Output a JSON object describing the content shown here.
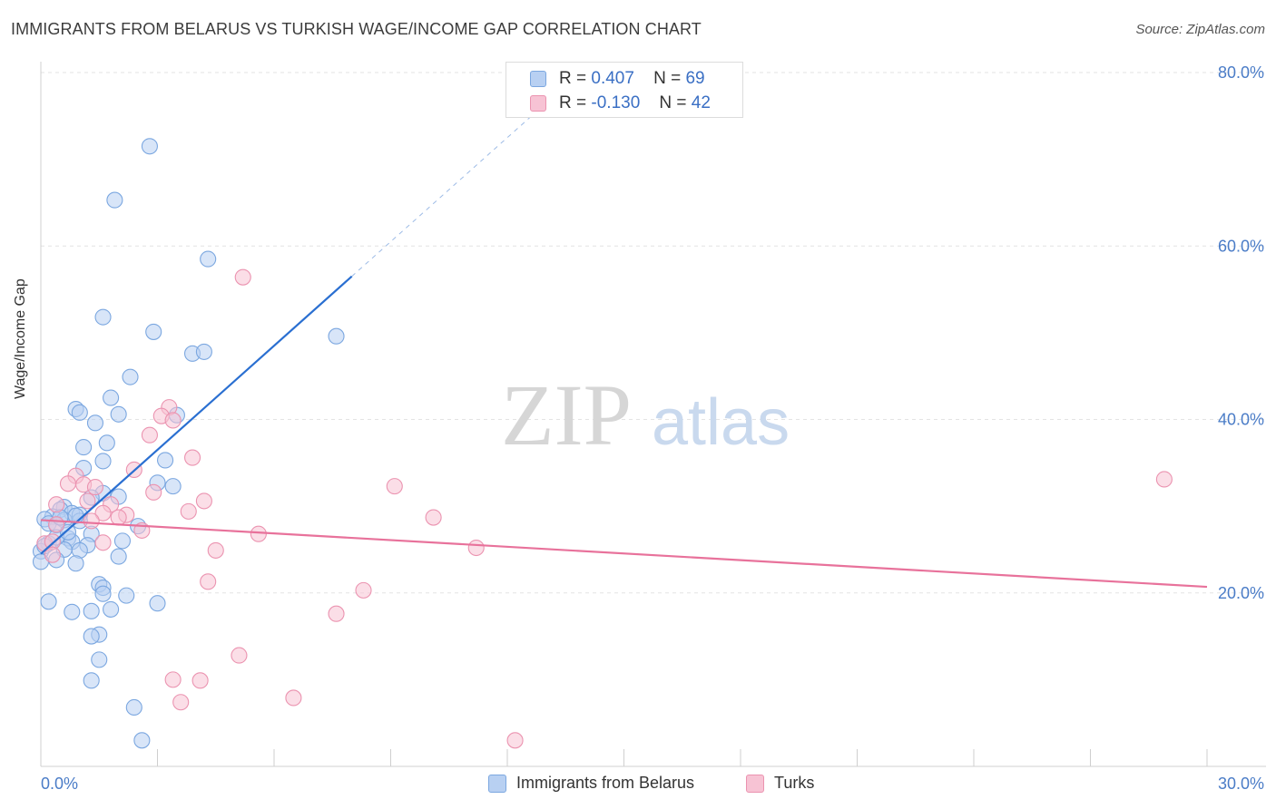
{
  "title": "IMMIGRANTS FROM BELARUS VS TURKISH WAGE/INCOME GAP CORRELATION CHART",
  "source": "Source: ZipAtlas.com",
  "watermark": {
    "zip": "ZIP",
    "atlas": "atlas"
  },
  "stats": [
    {
      "r_label": "R =",
      "r_value": "0.407",
      "n_label": "N =",
      "n_value": "69"
    },
    {
      "r_label": "R =",
      "r_value": "-0.130",
      "n_label": "N =",
      "n_value": "42"
    }
  ],
  "chart_data": {
    "type": "scatter",
    "title": "IMMIGRANTS FROM BELARUS VS TURKISH WAGE/INCOME GAP CORRELATION CHART",
    "xlabel": "",
    "ylabel": "Wage/Income Gap",
    "xlim": [
      0,
      30
    ],
    "ylim": [
      0,
      82
    ],
    "x_ticks": [
      0,
      30
    ],
    "x_tick_labels": [
      "0.0%",
      "30.0%"
    ],
    "y_ticks": [
      20,
      40,
      60,
      80
    ],
    "y_tick_labels": [
      "20.0%",
      "40.0%",
      "60.0%",
      "80.0%"
    ],
    "grid": true,
    "legend_position": "bottom-center",
    "series": [
      {
        "name": "Immigrants from Belarus",
        "color": "#7ba7e0",
        "fill": "#b8d0f2",
        "line_color": "#2a6fd1",
        "trend": {
          "x": [
            0.0,
            8.0
          ],
          "y": [
            24.5,
            56.5
          ],
          "dashed_to": [
            13.0,
            76.5
          ]
        },
        "points": [
          [
            2.8,
            71.5
          ],
          [
            1.9,
            65.3
          ],
          [
            4.3,
            58.5
          ],
          [
            1.6,
            51.8
          ],
          [
            2.9,
            50.1
          ],
          [
            7.6,
            49.6
          ],
          [
            3.9,
            47.6
          ],
          [
            4.2,
            47.8
          ],
          [
            2.3,
            44.9
          ],
          [
            1.8,
            42.5
          ],
          [
            0.9,
            41.2
          ],
          [
            1.0,
            40.8
          ],
          [
            2.0,
            40.6
          ],
          [
            3.5,
            40.5
          ],
          [
            1.4,
            39.6
          ],
          [
            1.7,
            37.3
          ],
          [
            1.1,
            36.8
          ],
          [
            1.6,
            35.2
          ],
          [
            3.2,
            35.3
          ],
          [
            1.1,
            34.4
          ],
          [
            3.0,
            32.7
          ],
          [
            3.4,
            32.3
          ],
          [
            1.6,
            31.5
          ],
          [
            2.0,
            31.1
          ],
          [
            1.3,
            31.0
          ],
          [
            0.6,
            29.9
          ],
          [
            0.5,
            29.6
          ],
          [
            0.8,
            29.2
          ],
          [
            1.0,
            29.0
          ],
          [
            0.3,
            28.8
          ],
          [
            0.1,
            28.5
          ],
          [
            0.6,
            28.4
          ],
          [
            1.0,
            28.3
          ],
          [
            0.2,
            28.0
          ],
          [
            0.4,
            27.8
          ],
          [
            2.5,
            27.7
          ],
          [
            1.3,
            26.8
          ],
          [
            0.7,
            26.3
          ],
          [
            0.8,
            25.9
          ],
          [
            0.2,
            25.7
          ],
          [
            2.1,
            26.0
          ],
          [
            1.2,
            25.5
          ],
          [
            0.6,
            25.0
          ],
          [
            1.0,
            24.9
          ],
          [
            0.0,
            24.8
          ],
          [
            2.0,
            24.2
          ],
          [
            0.4,
            23.8
          ],
          [
            0.0,
            23.6
          ],
          [
            0.9,
            23.4
          ],
          [
            1.5,
            21.0
          ],
          [
            1.6,
            20.6
          ],
          [
            1.6,
            19.9
          ],
          [
            2.2,
            19.7
          ],
          [
            0.2,
            19.0
          ],
          [
            3.0,
            18.8
          ],
          [
            1.8,
            18.1
          ],
          [
            0.8,
            17.8
          ],
          [
            1.3,
            17.9
          ],
          [
            1.5,
            15.2
          ],
          [
            1.3,
            15.0
          ],
          [
            1.5,
            12.3
          ],
          [
            1.3,
            9.9
          ],
          [
            2.4,
            6.8
          ],
          [
            2.6,
            3.0
          ],
          [
            0.4,
            26.4
          ],
          [
            0.1,
            25.4
          ],
          [
            0.7,
            27.0
          ],
          [
            0.9,
            28.9
          ],
          [
            0.5,
            28.7
          ]
        ]
      },
      {
        "name": "Turks",
        "color": "#eb93b0",
        "fill": "#f7c3d4",
        "line_color": "#e8729b",
        "trend": {
          "x": [
            0.0,
            30.0
          ],
          "y": [
            28.4,
            20.7
          ]
        },
        "points": [
          [
            5.2,
            56.4
          ],
          [
            3.3,
            41.4
          ],
          [
            3.1,
            40.4
          ],
          [
            3.4,
            39.9
          ],
          [
            2.8,
            38.2
          ],
          [
            3.9,
            35.6
          ],
          [
            2.4,
            34.2
          ],
          [
            0.9,
            33.5
          ],
          [
            1.1,
            32.5
          ],
          [
            1.4,
            32.2
          ],
          [
            0.7,
            32.6
          ],
          [
            2.9,
            31.6
          ],
          [
            9.1,
            32.3
          ],
          [
            28.9,
            33.1
          ],
          [
            4.2,
            30.6
          ],
          [
            1.8,
            30.2
          ],
          [
            0.4,
            30.2
          ],
          [
            1.2,
            30.6
          ],
          [
            1.6,
            29.2
          ],
          [
            2.2,
            29.0
          ],
          [
            3.8,
            29.4
          ],
          [
            2.0,
            28.7
          ],
          [
            10.1,
            28.7
          ],
          [
            1.3,
            28.3
          ],
          [
            0.4,
            27.9
          ],
          [
            2.6,
            27.2
          ],
          [
            5.6,
            26.8
          ],
          [
            1.6,
            25.8
          ],
          [
            0.1,
            25.7
          ],
          [
            0.3,
            25.9
          ],
          [
            11.2,
            25.2
          ],
          [
            4.5,
            24.9
          ],
          [
            0.3,
            24.4
          ],
          [
            4.3,
            21.3
          ],
          [
            8.3,
            20.3
          ],
          [
            7.6,
            17.6
          ],
          [
            5.1,
            12.8
          ],
          [
            3.4,
            10.0
          ],
          [
            4.1,
            9.9
          ],
          [
            6.5,
            7.9
          ],
          [
            3.6,
            7.4
          ],
          [
            12.2,
            3.0
          ]
        ]
      }
    ]
  }
}
